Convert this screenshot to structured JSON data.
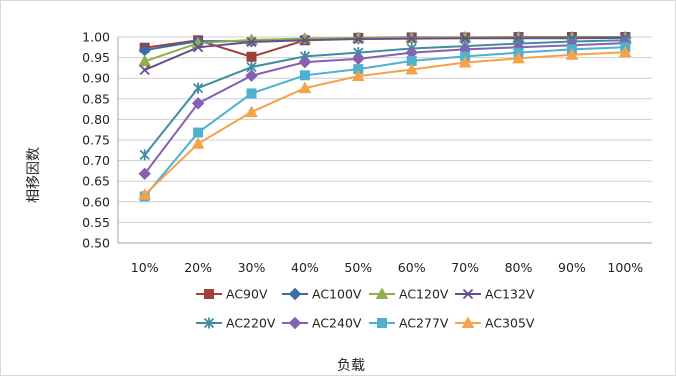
{
  "chart_data": {
    "type": "line",
    "title": "",
    "xlabel": "负载",
    "ylabel": "相移因数",
    "categories": [
      "10%",
      "20%",
      "30%",
      "40%",
      "50%",
      "60%",
      "70%",
      "80%",
      "90%",
      "100%"
    ],
    "ylim": [
      0.5,
      1.0
    ],
    "yticks": [
      0.5,
      0.55,
      0.6,
      0.65,
      0.7,
      0.75,
      0.8,
      0.85,
      0.9,
      0.95,
      1.0
    ],
    "grid": true,
    "legend_position": "bottom",
    "series": [
      {
        "name": "AC90V",
        "color": "#A0403C",
        "marker": "square",
        "values": [
          0.974,
          0.992,
          0.952,
          0.992,
          0.998,
          0.999,
          0.999,
          1.0,
          1.0,
          1.0
        ]
      },
      {
        "name": "AC100V",
        "color": "#3D6AA8",
        "marker": "diamond",
        "values": [
          0.968,
          0.99,
          0.99,
          0.995,
          0.997,
          0.998,
          0.998,
          0.999,
          0.999,
          0.999
        ]
      },
      {
        "name": "AC120V",
        "color": "#8FAE4C",
        "marker": "triangle",
        "values": [
          0.941,
          0.985,
          0.993,
          0.996,
          0.998,
          0.998,
          0.999,
          0.999,
          0.999,
          0.999
        ]
      },
      {
        "name": "AC132V",
        "color": "#6A4E8C",
        "marker": "x",
        "values": [
          0.92,
          0.975,
          0.988,
          0.992,
          0.995,
          0.996,
          0.997,
          0.997,
          0.997,
          0.998
        ]
      },
      {
        "name": "AC220V",
        "color": "#3F8EA0",
        "marker": "star",
        "values": [
          0.714,
          0.876,
          0.927,
          0.953,
          0.962,
          0.972,
          0.978,
          0.984,
          0.989,
          0.992
        ]
      },
      {
        "name": "AC240V",
        "color": "#8660B2",
        "marker": "diamond",
        "values": [
          0.668,
          0.839,
          0.906,
          0.939,
          0.947,
          0.962,
          0.97,
          0.975,
          0.98,
          0.985
        ]
      },
      {
        "name": "AC277V",
        "color": "#4FB0D0",
        "marker": "square",
        "values": [
          0.613,
          0.768,
          0.863,
          0.907,
          0.922,
          0.942,
          0.953,
          0.962,
          0.97,
          0.975
        ]
      },
      {
        "name": "AC305V",
        "color": "#F4A348",
        "marker": "triangle",
        "values": [
          0.617,
          0.741,
          0.818,
          0.876,
          0.905,
          0.921,
          0.938,
          0.948,
          0.957,
          0.963
        ]
      }
    ]
  }
}
